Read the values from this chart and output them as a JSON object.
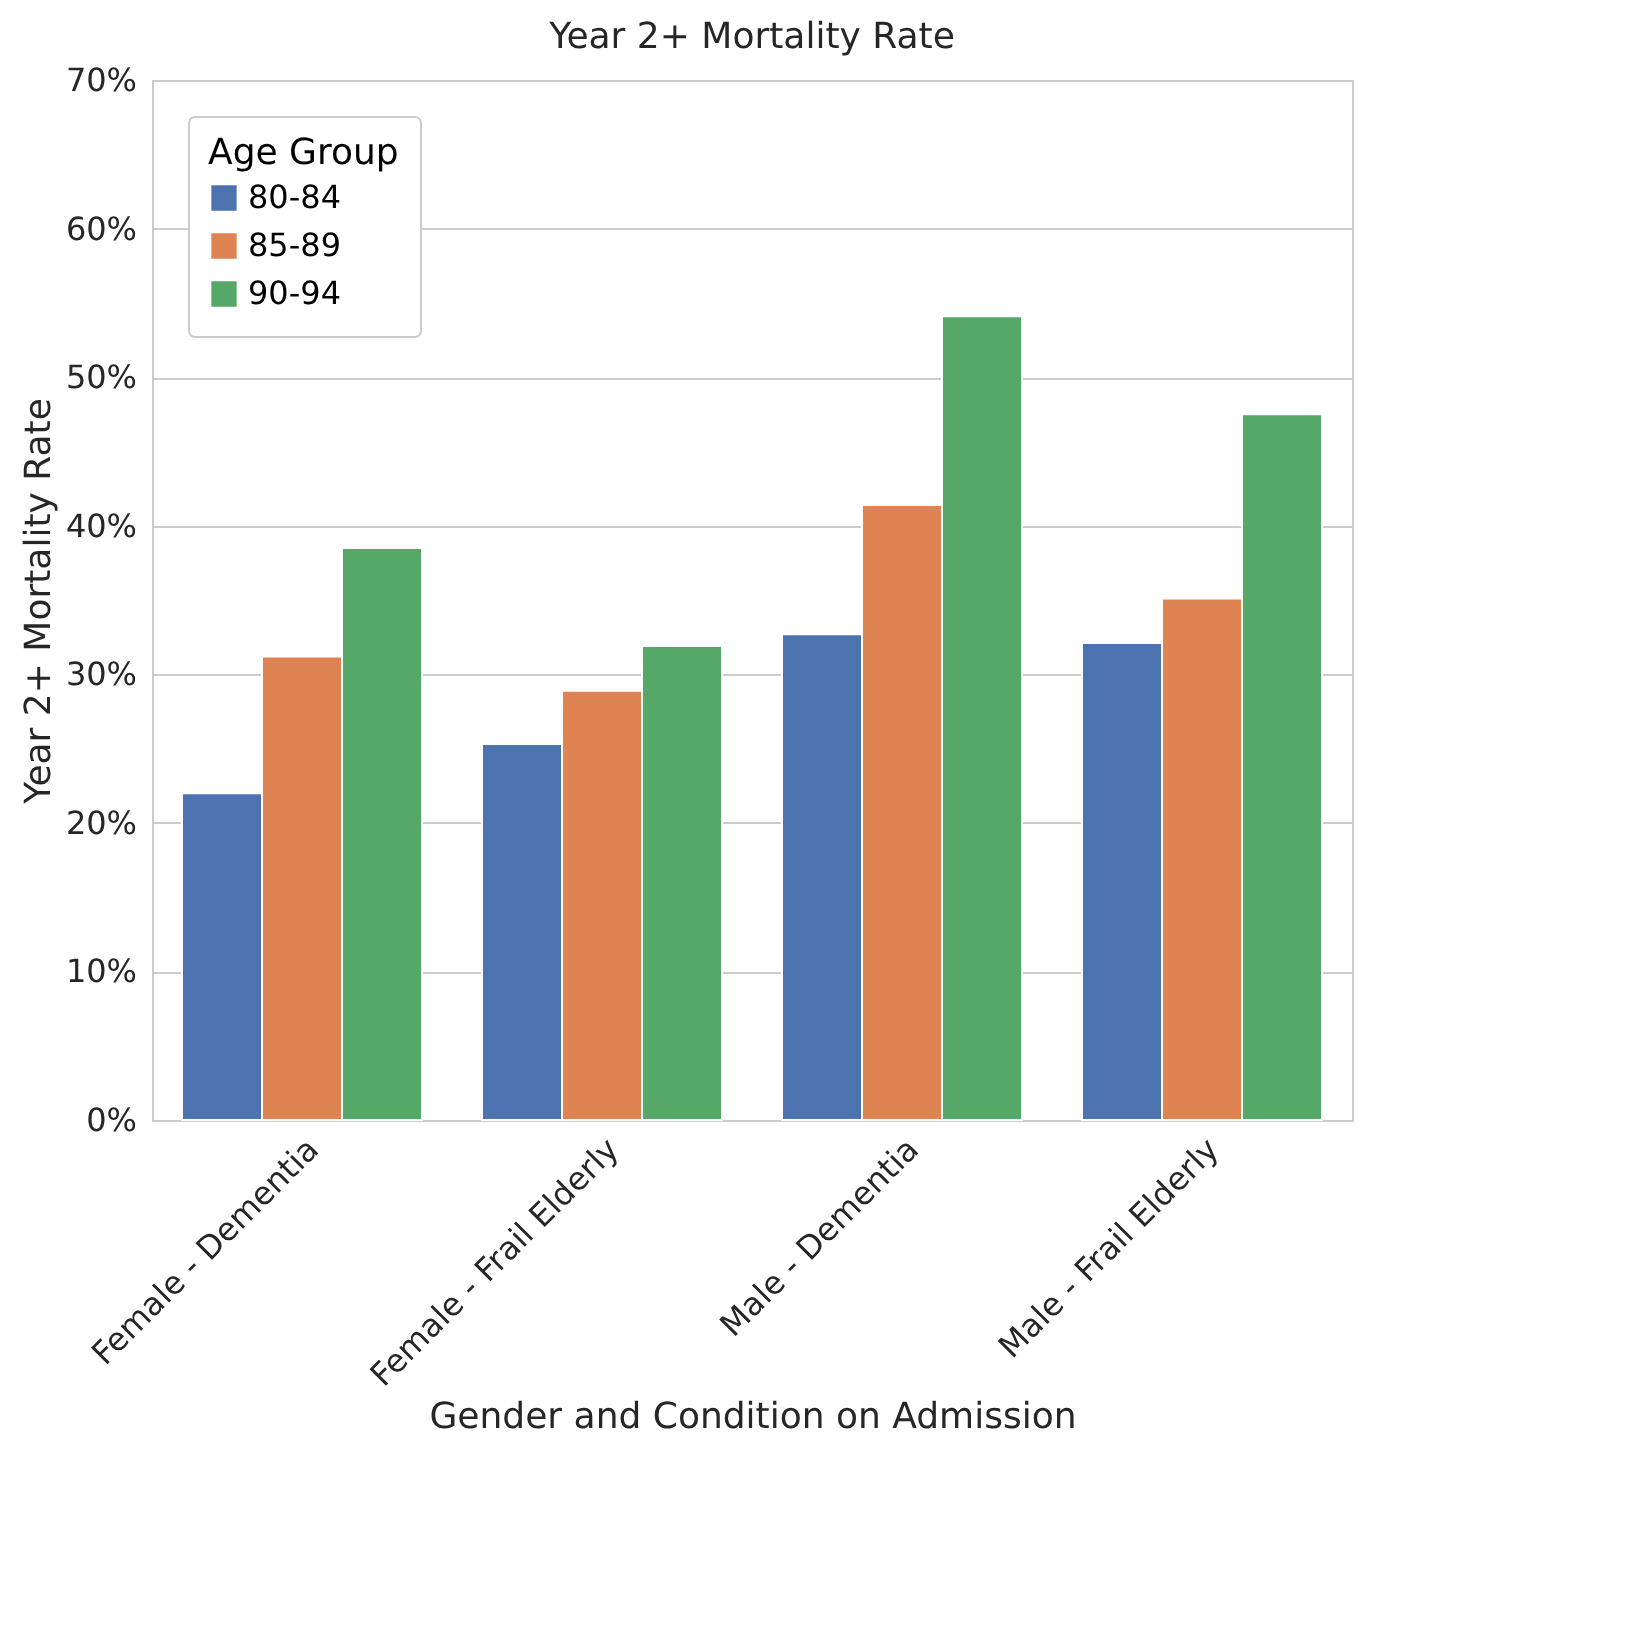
{
  "chart_data": {
    "type": "bar",
    "title": "Year 2+ Mortality Rate",
    "xlabel": "Gender and Condition on Admission",
    "ylabel": "Year 2+ Mortality Rate",
    "legend_title": "Age Group",
    "categories": [
      "Female - Dementia",
      "Female - Frail Elderly",
      "Male - Dementia",
      "Male - Frail Elderly"
    ],
    "series": [
      {
        "name": "80-84",
        "color": "#4c72b0",
        "values": [
          22,
          25.3,
          32.7,
          32.1
        ]
      },
      {
        "name": "85-89",
        "color": "#dd8452",
        "values": [
          31.2,
          28.9,
          41.4,
          35.1
        ]
      },
      {
        "name": "90-94",
        "color": "#55a868",
        "values": [
          38.5,
          31.9,
          54.1,
          47.5
        ]
      }
    ],
    "ylim": [
      0,
      70
    ],
    "yticks": [
      {
        "value": 0,
        "label": "0%"
      },
      {
        "value": 10,
        "label": "10%"
      },
      {
        "value": 20,
        "label": "20%"
      },
      {
        "value": 30,
        "label": "30%"
      },
      {
        "value": 40,
        "label": "40%"
      },
      {
        "value": 50,
        "label": "50%"
      },
      {
        "value": 60,
        "label": "60%"
      },
      {
        "value": 70,
        "label": "70%"
      }
    ],
    "grid": "y",
    "legend": "top left"
  }
}
